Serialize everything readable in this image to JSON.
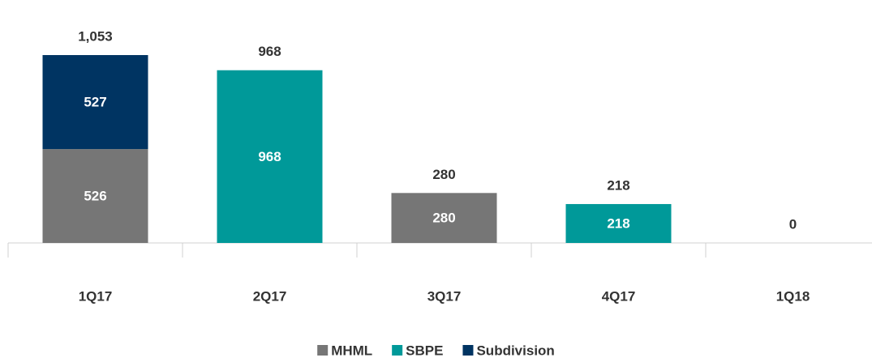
{
  "chart_data": {
    "type": "stacked_bar",
    "categories": [
      "1Q17",
      "2Q17",
      "3Q17",
      "4Q17",
      "1Q18"
    ],
    "series": [
      {
        "name": "MHML",
        "color": "#767676",
        "values": [
          526,
          null,
          280,
          null,
          null
        ]
      },
      {
        "name": "SBPE",
        "color": "#009999",
        "values": [
          null,
          968,
          null,
          218,
          null
        ]
      },
      {
        "name": "Subdivision",
        "color": "#003462",
        "values": [
          527,
          null,
          null,
          null,
          null
        ]
      }
    ],
    "totals": [
      1053,
      968,
      280,
      218,
      0
    ],
    "total_labels": [
      "1,053",
      "968",
      "280",
      "218",
      "0"
    ],
    "legend": "bottom"
  }
}
